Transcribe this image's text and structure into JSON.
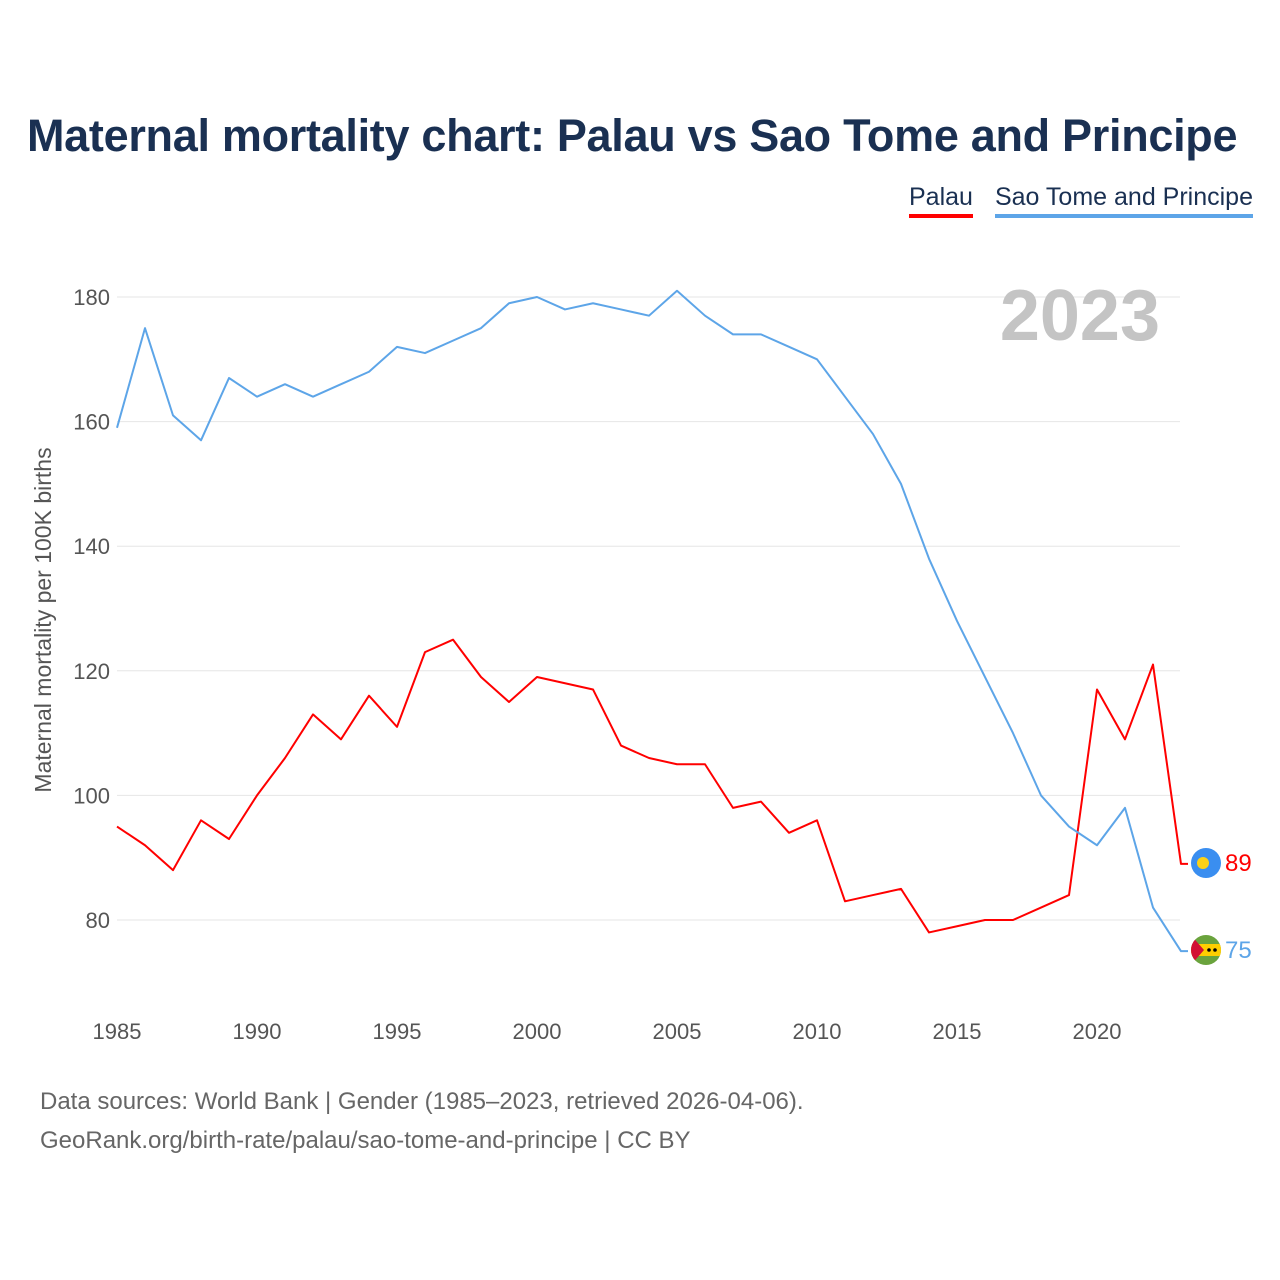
{
  "title": "Maternal mortality chart: Palau vs Sao Tome and Principe",
  "footer": {
    "line1": "Data sources: World Bank | Gender (1985–2023, retrieved 2026-04-06).",
    "line2": "GeoRank.org/birth-rate/palau/sao-tome-and-principe | CC BY"
  },
  "chart_data": {
    "type": "line",
    "title": "Maternal mortality chart: Palau vs Sao Tome and Principe",
    "ylabel": "Maternal mortality per 100K births",
    "xlabel": "",
    "year_label": "2023",
    "xlim": [
      1985,
      2023
    ],
    "ylim": [
      70,
      187
    ],
    "yticks": [
      80,
      100,
      120,
      140,
      160,
      180
    ],
    "xticks": [
      1985,
      1990,
      1995,
      2000,
      2005,
      2010,
      2015,
      2020
    ],
    "grid": true,
    "legend_position": "top-right",
    "x": [
      1985,
      1986,
      1987,
      1988,
      1989,
      1990,
      1991,
      1992,
      1993,
      1994,
      1995,
      1996,
      1997,
      1998,
      1999,
      2000,
      2001,
      2002,
      2003,
      2004,
      2005,
      2006,
      2007,
      2008,
      2009,
      2010,
      2011,
      2012,
      2013,
      2014,
      2015,
      2016,
      2017,
      2018,
      2019,
      2020,
      2021,
      2022,
      2023
    ],
    "series": [
      {
        "name": "Palau",
        "color": "#ff0000",
        "end_label": "89",
        "values": [
          95,
          92,
          88,
          96,
          93,
          100,
          106,
          113,
          109,
          116,
          111,
          123,
          125,
          119,
          115,
          119,
          118,
          117,
          108,
          106,
          105,
          105,
          98,
          99,
          94,
          96,
          83,
          84,
          85,
          78,
          79,
          80,
          80,
          82,
          84,
          117,
          109,
          121,
          89
        ]
      },
      {
        "name": "Sao Tome and Principe",
        "color": "#5da5e8",
        "end_label": "75",
        "values": [
          159,
          175,
          161,
          157,
          167,
          164,
          166,
          164,
          166,
          168,
          172,
          171,
          173,
          175,
          179,
          180,
          178,
          179,
          178,
          177,
          181,
          177,
          174,
          174,
          172,
          170,
          164,
          158,
          150,
          138,
          128,
          119,
          110,
          100,
          95,
          92,
          98,
          82,
          75
        ]
      }
    ]
  }
}
